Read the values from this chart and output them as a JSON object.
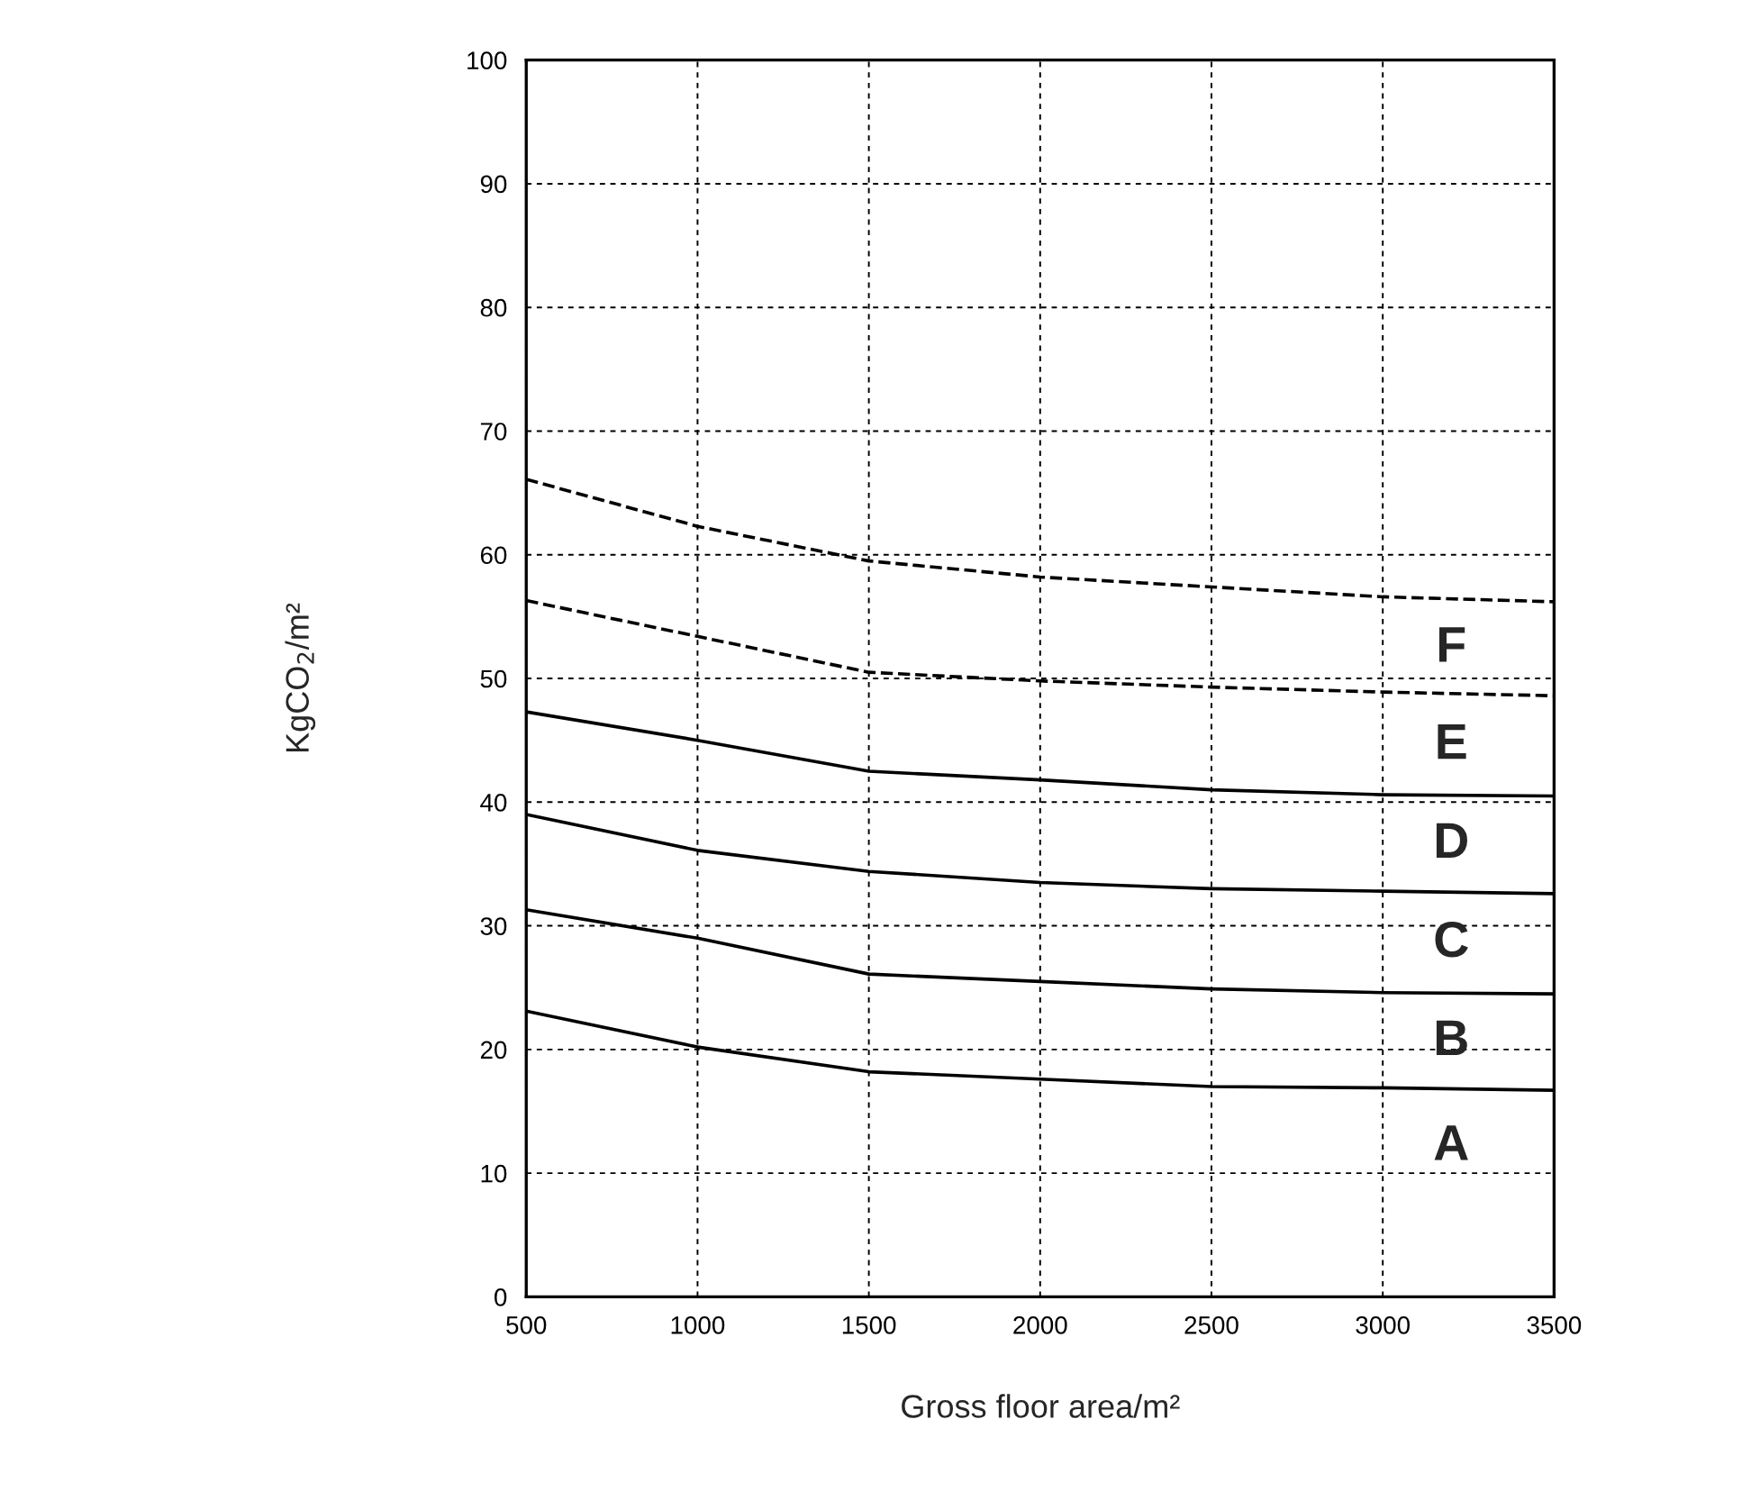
{
  "chart_data": {
    "type": "line",
    "xlabel": "Gross floor area/m²",
    "ylabel": "KgCO$_{2}$/m²",
    "x": [
      500,
      1000,
      1500,
      2000,
      2500,
      3000,
      3500
    ],
    "series": [
      {
        "color": "#000000",
        "line_style": "dashed",
        "values": [
          66.1,
          62.3,
          59.5,
          58.2,
          57.4,
          56.6,
          56.2
        ]
      },
      {
        "color": "#000000",
        "line_style": "dashed",
        "values": [
          56.3,
          53.4,
          50.5,
          49.8,
          49.3,
          48.9,
          48.6
        ]
      },
      {
        "color": "#000000",
        "line_style": "solid",
        "values": [
          47.3,
          45,
          42.5,
          41.8,
          41,
          40.6,
          40.5
        ]
      },
      {
        "color": "#000000",
        "line_style": "solid",
        "values": [
          39,
          36.1,
          34.4,
          33.5,
          33,
          32.8,
          32.6
        ]
      },
      {
        "color": "#000000",
        "line_style": "solid",
        "values": [
          31.3,
          29,
          26.1,
          25.5,
          24.9,
          24.6,
          24.5
        ]
      },
      {
        "color": "#000000",
        "line_style": "solid",
        "values": [
          23.1,
          20.2,
          18.2,
          17.6,
          17,
          16.9,
          16.7
        ]
      }
    ],
    "annotations": [
      "F",
      "E",
      "D",
      "C",
      "B",
      "A"
    ],
    "xlim": [
      500,
      3500
    ],
    "xticks": [
      500,
      1000,
      1500,
      2000,
      2500,
      3000,
      3500
    ],
    "ylim": [
      0,
      100
    ],
    "yticks": [
      0,
      10,
      20,
      30,
      40,
      50,
      60,
      70,
      80,
      90,
      100
    ],
    "grid": true,
    "legend": false
  }
}
